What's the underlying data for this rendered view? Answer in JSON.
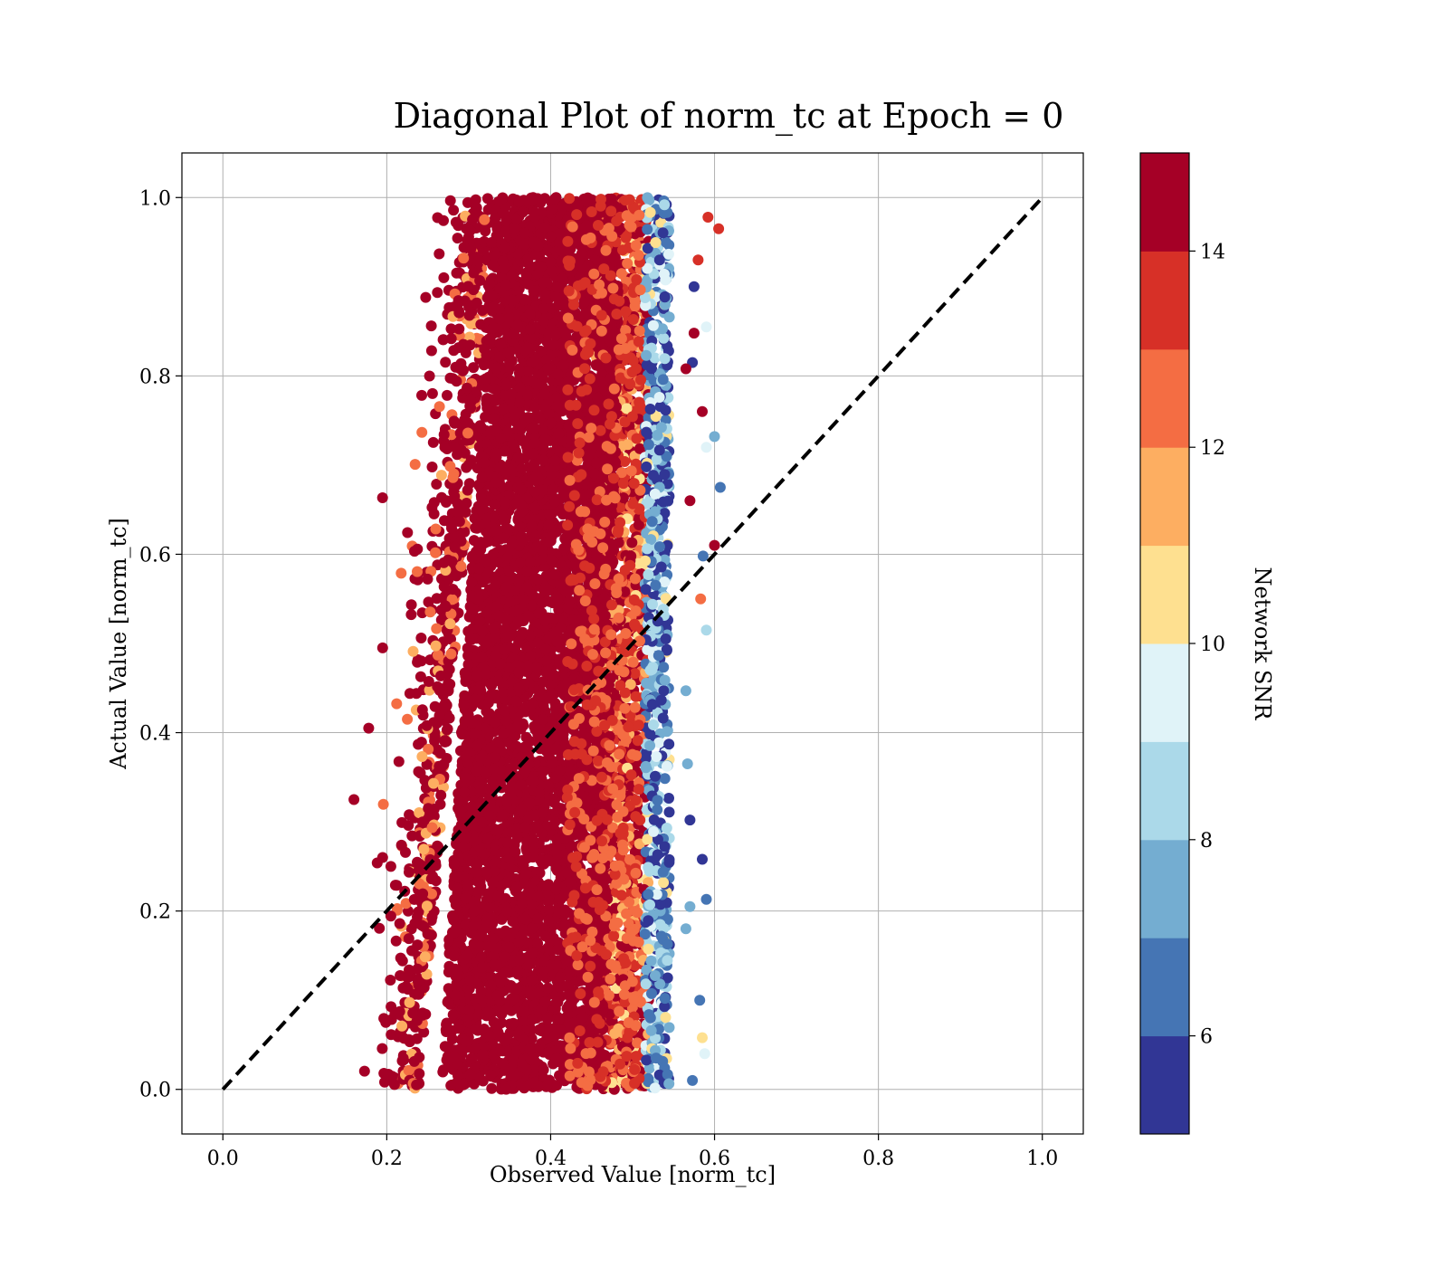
{
  "chart_data": {
    "type": "scatter",
    "title": "Diagonal Plot of norm_tc at Epoch = 0",
    "xlabel": "Observed Value [norm_tc]",
    "ylabel": "Actual Value [norm_tc]",
    "xlim": [
      -0.05,
      1.05
    ],
    "ylim": [
      -0.05,
      1.05
    ],
    "xticks": [
      "0.0",
      "0.2",
      "0.4",
      "0.6",
      "0.8",
      "1.0"
    ],
    "yticks": [
      "0.0",
      "0.2",
      "0.4",
      "0.6",
      "0.8",
      "1.0"
    ],
    "grid": true,
    "reference_line": {
      "style": "dashed",
      "color": "#000000",
      "from": [
        0,
        0
      ],
      "to": [
        1,
        1
      ]
    },
    "colorbar": {
      "label": "Network SNR",
      "range": [
        5,
        15
      ],
      "ticks": [
        "6",
        "8",
        "10",
        "12",
        "14"
      ],
      "colors": [
        "#313695",
        "#4575b4",
        "#74add1",
        "#abd9e9",
        "#e0f3f8",
        "#fee090",
        "#fdae61",
        "#f46d43",
        "#d73027",
        "#a50026"
      ]
    },
    "point_cloud": {
      "x_range": [
        0.16,
        0.61
      ],
      "y_range": [
        0.0,
        1.0
      ],
      "dense_core_color": "#a50026",
      "outlier_points": [
        {
          "x": 0.16,
          "y": 0.325,
          "snr": 15
        },
        {
          "x": 0.178,
          "y": 0.405,
          "snr": 15
        },
        {
          "x": 0.195,
          "y": 0.495,
          "snr": 15
        },
        {
          "x": 0.195,
          "y": 0.26,
          "snr": 15
        },
        {
          "x": 0.205,
          "y": 0.25,
          "snr": 15
        },
        {
          "x": 0.21,
          "y": 0.085,
          "snr": 15
        },
        {
          "x": 0.592,
          "y": 0.978,
          "snr": 13.5
        },
        {
          "x": 0.605,
          "y": 0.965,
          "snr": 13.5
        },
        {
          "x": 0.58,
          "y": 0.93,
          "snr": 13.5
        },
        {
          "x": 0.575,
          "y": 0.9,
          "snr": 5.5
        },
        {
          "x": 0.59,
          "y": 0.855,
          "snr": 9.5
        },
        {
          "x": 0.575,
          "y": 0.848,
          "snr": 15
        },
        {
          "x": 0.573,
          "y": 0.815,
          "snr": 5.5
        },
        {
          "x": 0.565,
          "y": 0.808,
          "snr": 15
        },
        {
          "x": 0.585,
          "y": 0.76,
          "snr": 15
        },
        {
          "x": 0.6,
          "y": 0.732,
          "snr": 7.5
        },
        {
          "x": 0.59,
          "y": 0.72,
          "snr": 9.5
        },
        {
          "x": 0.607,
          "y": 0.675,
          "snr": 6.5
        },
        {
          "x": 0.57,
          "y": 0.66,
          "snr": 15
        },
        {
          "x": 0.6,
          "y": 0.61,
          "snr": 15
        },
        {
          "x": 0.586,
          "y": 0.598,
          "snr": 6.5
        },
        {
          "x": 0.583,
          "y": 0.55,
          "snr": 12.5
        },
        {
          "x": 0.59,
          "y": 0.515,
          "snr": 8.5
        },
        {
          "x": 0.565,
          "y": 0.447,
          "snr": 7.5
        },
        {
          "x": 0.567,
          "y": 0.365,
          "snr": 7.5
        },
        {
          "x": 0.57,
          "y": 0.302,
          "snr": 5.5
        },
        {
          "x": 0.585,
          "y": 0.258,
          "snr": 5.5
        },
        {
          "x": 0.59,
          "y": 0.213,
          "snr": 6.5
        },
        {
          "x": 0.57,
          "y": 0.205,
          "snr": 7.5
        },
        {
          "x": 0.565,
          "y": 0.18,
          "snr": 7.5
        },
        {
          "x": 0.582,
          "y": 0.1,
          "snr": 6.5
        },
        {
          "x": 0.585,
          "y": 0.058,
          "snr": 10.5
        },
        {
          "x": 0.588,
          "y": 0.04,
          "snr": 9.5
        },
        {
          "x": 0.573,
          "y": 0.01,
          "snr": 6.5
        }
      ]
    }
  }
}
